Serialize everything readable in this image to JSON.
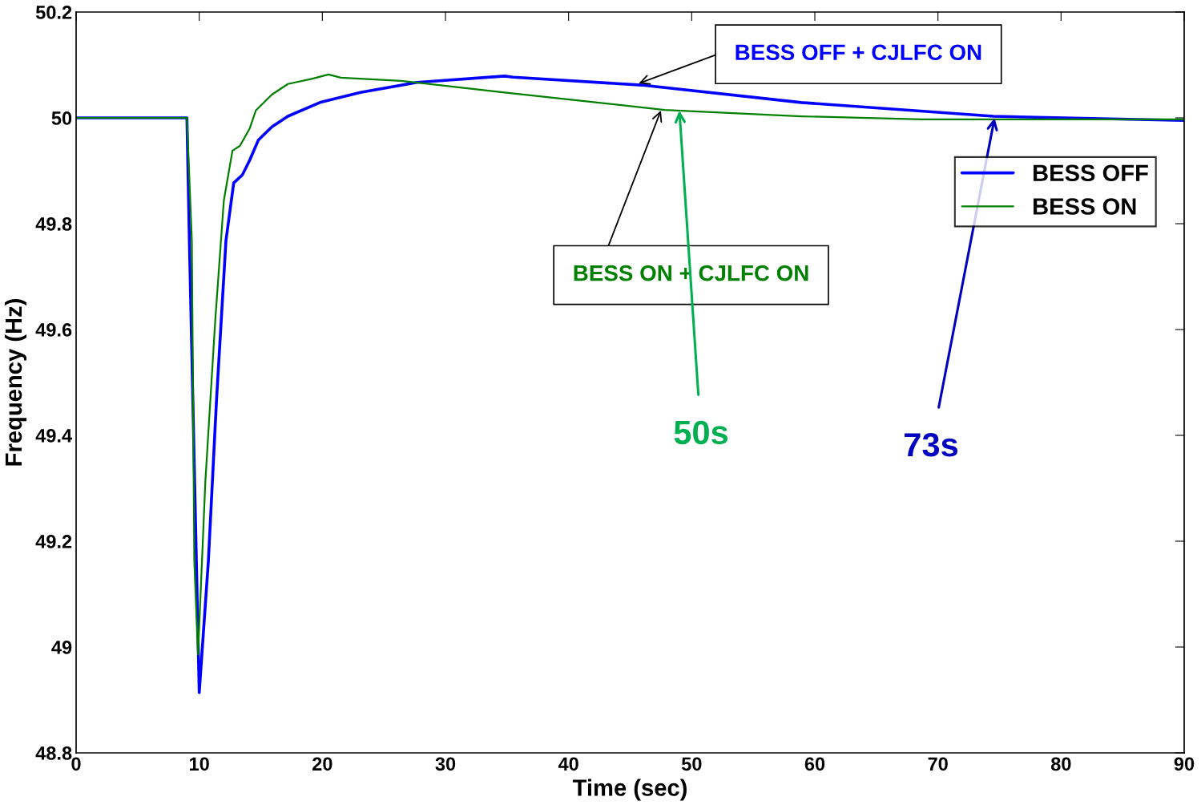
{
  "chart_data": {
    "type": "line",
    "xlabel": "Time (sec)",
    "ylabel": "Frequency (Hz)",
    "xlim": [
      0,
      90
    ],
    "ylim": [
      48.8,
      50.2
    ],
    "xticks": [
      0,
      10,
      20,
      30,
      40,
      50,
      60,
      70,
      80,
      90
    ],
    "yticks": [
      48.8,
      49,
      49.2,
      49.4,
      49.6,
      49.8,
      50,
      50.2
    ],
    "grid": false,
    "legend": "top right",
    "marker": "none",
    "line_style": "solid",
    "series": [
      {
        "name": "BESS OFF",
        "color": "#0000ff",
        "x": [
          0,
          9.0,
          9.2,
          10.0,
          10.74,
          11.4,
          12.17,
          12.8,
          13.5,
          14.1,
          14.8,
          15.9,
          17.2,
          19.8,
          23.1,
          27.7,
          34.8,
          35.5,
          45.9,
          58.9,
          74.5,
          90
        ],
        "values": [
          50.0,
          50.0,
          49.768,
          48.914,
          49.162,
          49.465,
          49.768,
          49.877,
          49.892,
          49.92,
          49.958,
          49.983,
          50.003,
          50.029,
          50.048,
          50.067,
          50.079,
          50.077,
          50.062,
          50.029,
          50.003,
          49.995
        ]
      },
      {
        "name": "BESS ON",
        "color": "#008000",
        "x": [
          0,
          9.0,
          9.4,
          9.6,
          9.9,
          10.5,
          11.3,
          12.0,
          12.7,
          13.3,
          14.1,
          14.6,
          15.9,
          17.2,
          19.2,
          20.5,
          21.5,
          26.4,
          34.8,
          47.8,
          58.9,
          68.7,
          90
        ],
        "values": [
          50.0,
          50.0,
          49.768,
          49.162,
          48.986,
          49.314,
          49.617,
          49.844,
          49.938,
          49.947,
          49.98,
          50.014,
          50.044,
          50.064,
          50.074,
          50.082,
          50.076,
          50.07,
          50.048,
          50.015,
          50.003,
          49.997,
          49.997
        ]
      }
    ],
    "annotations": [
      {
        "text": "BESS OFF + CJLFC ON",
        "x": 45.7,
        "y": 50.065
      },
      {
        "text": "BESS ON + CJLFC ON",
        "x": 47.5,
        "y": 50.014
      },
      {
        "text": "50s",
        "x": 49,
        "y": 50.014
      },
      {
        "text": "73s",
        "x": 74.6,
        "y": 50.0
      }
    ]
  }
}
